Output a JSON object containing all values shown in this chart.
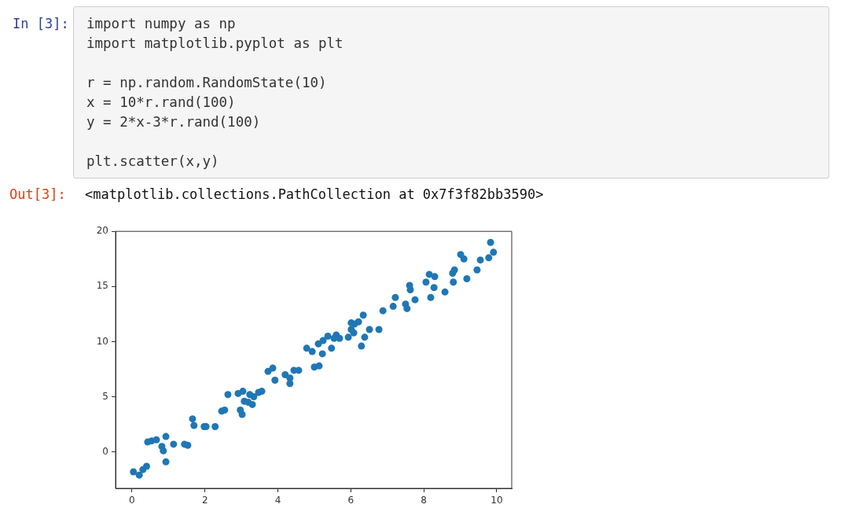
{
  "chart_data": {
    "type": "scatter",
    "color": "#1f77b4",
    "marker": "circle",
    "grid": false,
    "legend": false,
    "xlim": [
      -0.45,
      10.41
    ],
    "ylim": [
      -3.3,
      20
    ],
    "xticks": [
      0,
      2,
      4,
      6,
      8,
      10
    ],
    "yticks": [
      0,
      5,
      10,
      15,
      20
    ],
    "annotations": [
      "In [3]:",
      "import numpy as np\nimport matplotlib.pyplot as plt\n\nr = np.random.RandomState(10)\nx = 10*r.rand(100)\ny = 2*x-3*r.rand(100)\n\nplt.scatter(x,y)",
      "Out[3]:",
      "<matplotlib.collections.PathCollection at 0x7f3f82bb3590>"
    ],
    "x": [
      0.04,
      0.2,
      0.3,
      0.4,
      0.43,
      0.54,
      0.67,
      0.82,
      0.86,
      0.93,
      0.93,
      1.14,
      1.44,
      1.53,
      1.66,
      1.7,
      1.98,
      2.03,
      2.28,
      2.46,
      2.54,
      2.63,
      2.97,
      3.02,
      2.91,
      3.04,
      3.08,
      3.19,
      3.23,
      3.3,
      3.34,
      3.47,
      3.56,
      3.73,
      3.86,
      3.92,
      4.2,
      4.33,
      4.33,
      4.44,
      4.57,
      4.79,
      4.94,
      5.0,
      5.13,
      5.11,
      5.22,
      5.24,
      5.37,
      5.47,
      5.54,
      5.6,
      5.69,
      5.93,
      6.01,
      6.01,
      6.08,
      6.1,
      6.21,
      6.29,
      6.38,
      6.34,
      6.51,
      6.77,
      6.88,
      7.16,
      7.22,
      7.5,
      7.54,
      7.61,
      7.63,
      7.76,
      8.06,
      8.15,
      8.19,
      8.3,
      8.28,
      8.58,
      8.79,
      8.84,
      8.81,
      9.01,
      9.1,
      9.18,
      9.46,
      9.55,
      9.78,
      9.83,
      9.91
    ],
    "values": [
      -1.8,
      -2.1,
      -1.6,
      -1.3,
      0.9,
      1.0,
      1.1,
      0.5,
      0.1,
      1.4,
      -0.9,
      0.7,
      0.7,
      0.6,
      3.0,
      2.4,
      2.3,
      2.3,
      2.3,
      3.7,
      3.8,
      5.2,
      3.8,
      3.4,
      5.3,
      5.5,
      4.6,
      4.5,
      5.2,
      4.3,
      5.0,
      5.4,
      5.5,
      7.3,
      7.6,
      6.5,
      7.0,
      6.7,
      6.2,
      7.4,
      7.4,
      9.4,
      9.1,
      7.7,
      7.8,
      9.8,
      8.9,
      10.1,
      10.5,
      9.4,
      10.3,
      10.6,
      10.3,
      10.4,
      11.1,
      11.7,
      10.8,
      11.6,
      11.8,
      9.6,
      10.4,
      12.4,
      11.1,
      11.1,
      12.8,
      13.2,
      14.0,
      13.4,
      13.0,
      15.1,
      14.7,
      13.8,
      15.4,
      16.1,
      14.0,
      15.9,
      14.9,
      14.5,
      16.2,
      16.5,
      15.4,
      17.9,
      17.5,
      15.7,
      16.5,
      17.4,
      17.6,
      19.0,
      18.1
    ]
  }
}
